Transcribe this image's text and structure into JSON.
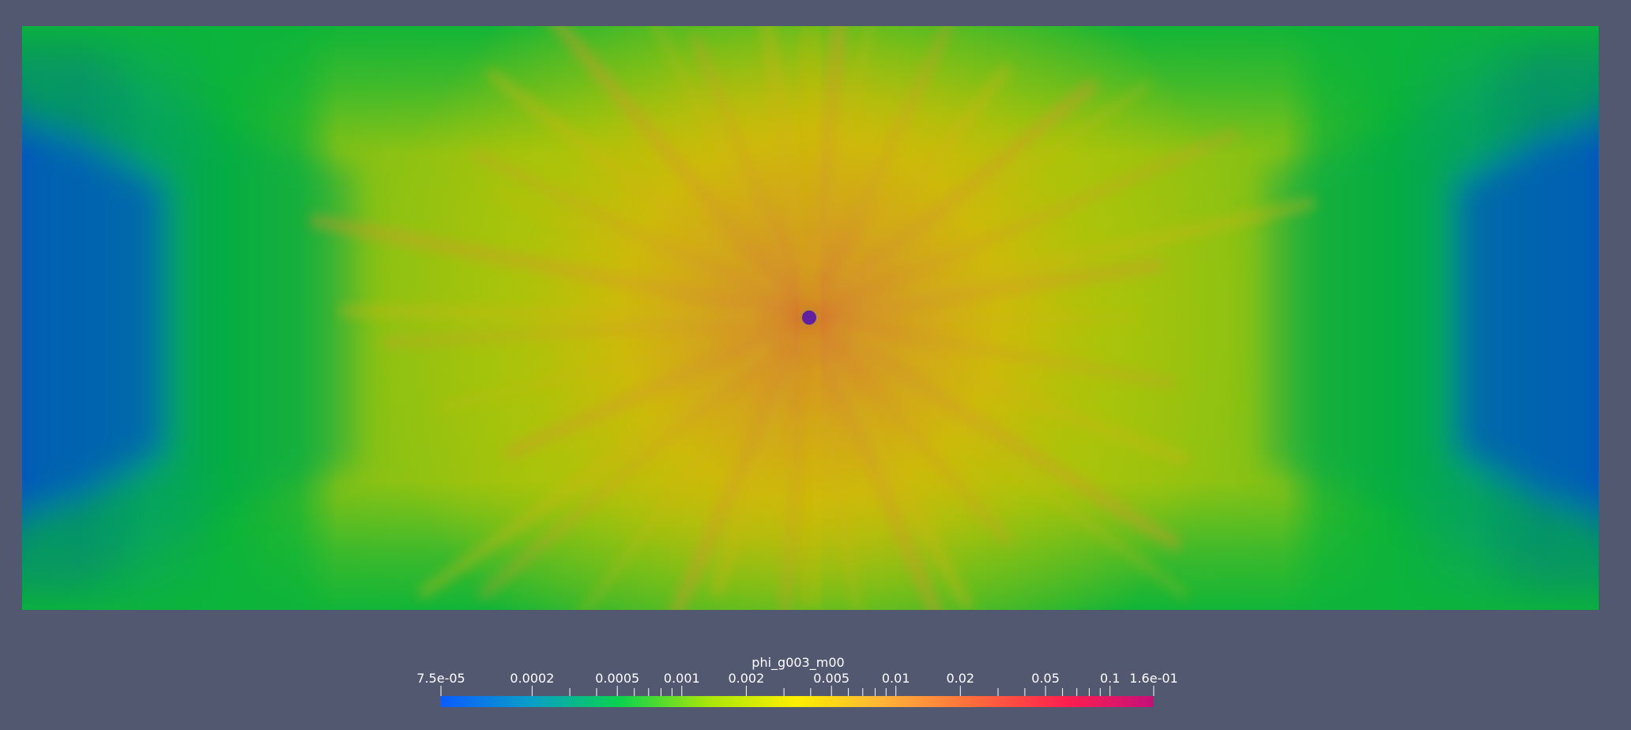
{
  "colorbar": {
    "title": "phi_g003_m00",
    "scale": "log",
    "range": [
      7.5e-05,
      0.16
    ],
    "labels": [
      {
        "text": "7.5e-05",
        "value": 7.5e-05
      },
      {
        "text": "0.0002",
        "value": 0.0002
      },
      {
        "text": "0.0005",
        "value": 0.0005
      },
      {
        "text": "0.001",
        "value": 0.001
      },
      {
        "text": "0.002",
        "value": 0.002
      },
      {
        "text": "0.005",
        "value": 0.005
      },
      {
        "text": "0.01",
        "value": 0.01
      },
      {
        "text": "0.02",
        "value": 0.02
      },
      {
        "text": "0.05",
        "value": 0.05
      },
      {
        "text": "0.1",
        "value": 0.1
      },
      {
        "text": "1.6e-01",
        "value": 0.16
      }
    ],
    "minor_ticks": [
      0.0003,
      0.0004,
      0.0006,
      0.0007,
      0.0008,
      0.0009,
      0.003,
      0.004,
      0.006,
      0.007,
      0.008,
      0.009,
      0.03,
      0.04,
      0.06,
      0.07,
      0.08,
      0.09
    ],
    "colors": [
      "#0a5cff",
      "#0a9ec8",
      "#0ad24e",
      "#a8e60a",
      "#ffef00",
      "#ffb13a",
      "#ff6a3c",
      "#ff1f4e",
      "#c4107a"
    ]
  },
  "field": {
    "colors": {
      "background": "#525870",
      "edge_blue": "#0a52c0",
      "green": "#0bb43a",
      "yellow_green": "#9ec80a",
      "yellow": "#cfc400",
      "orange": "#d89a20",
      "red": "#e03040",
      "center_purple": "#7a1e8a"
    }
  }
}
